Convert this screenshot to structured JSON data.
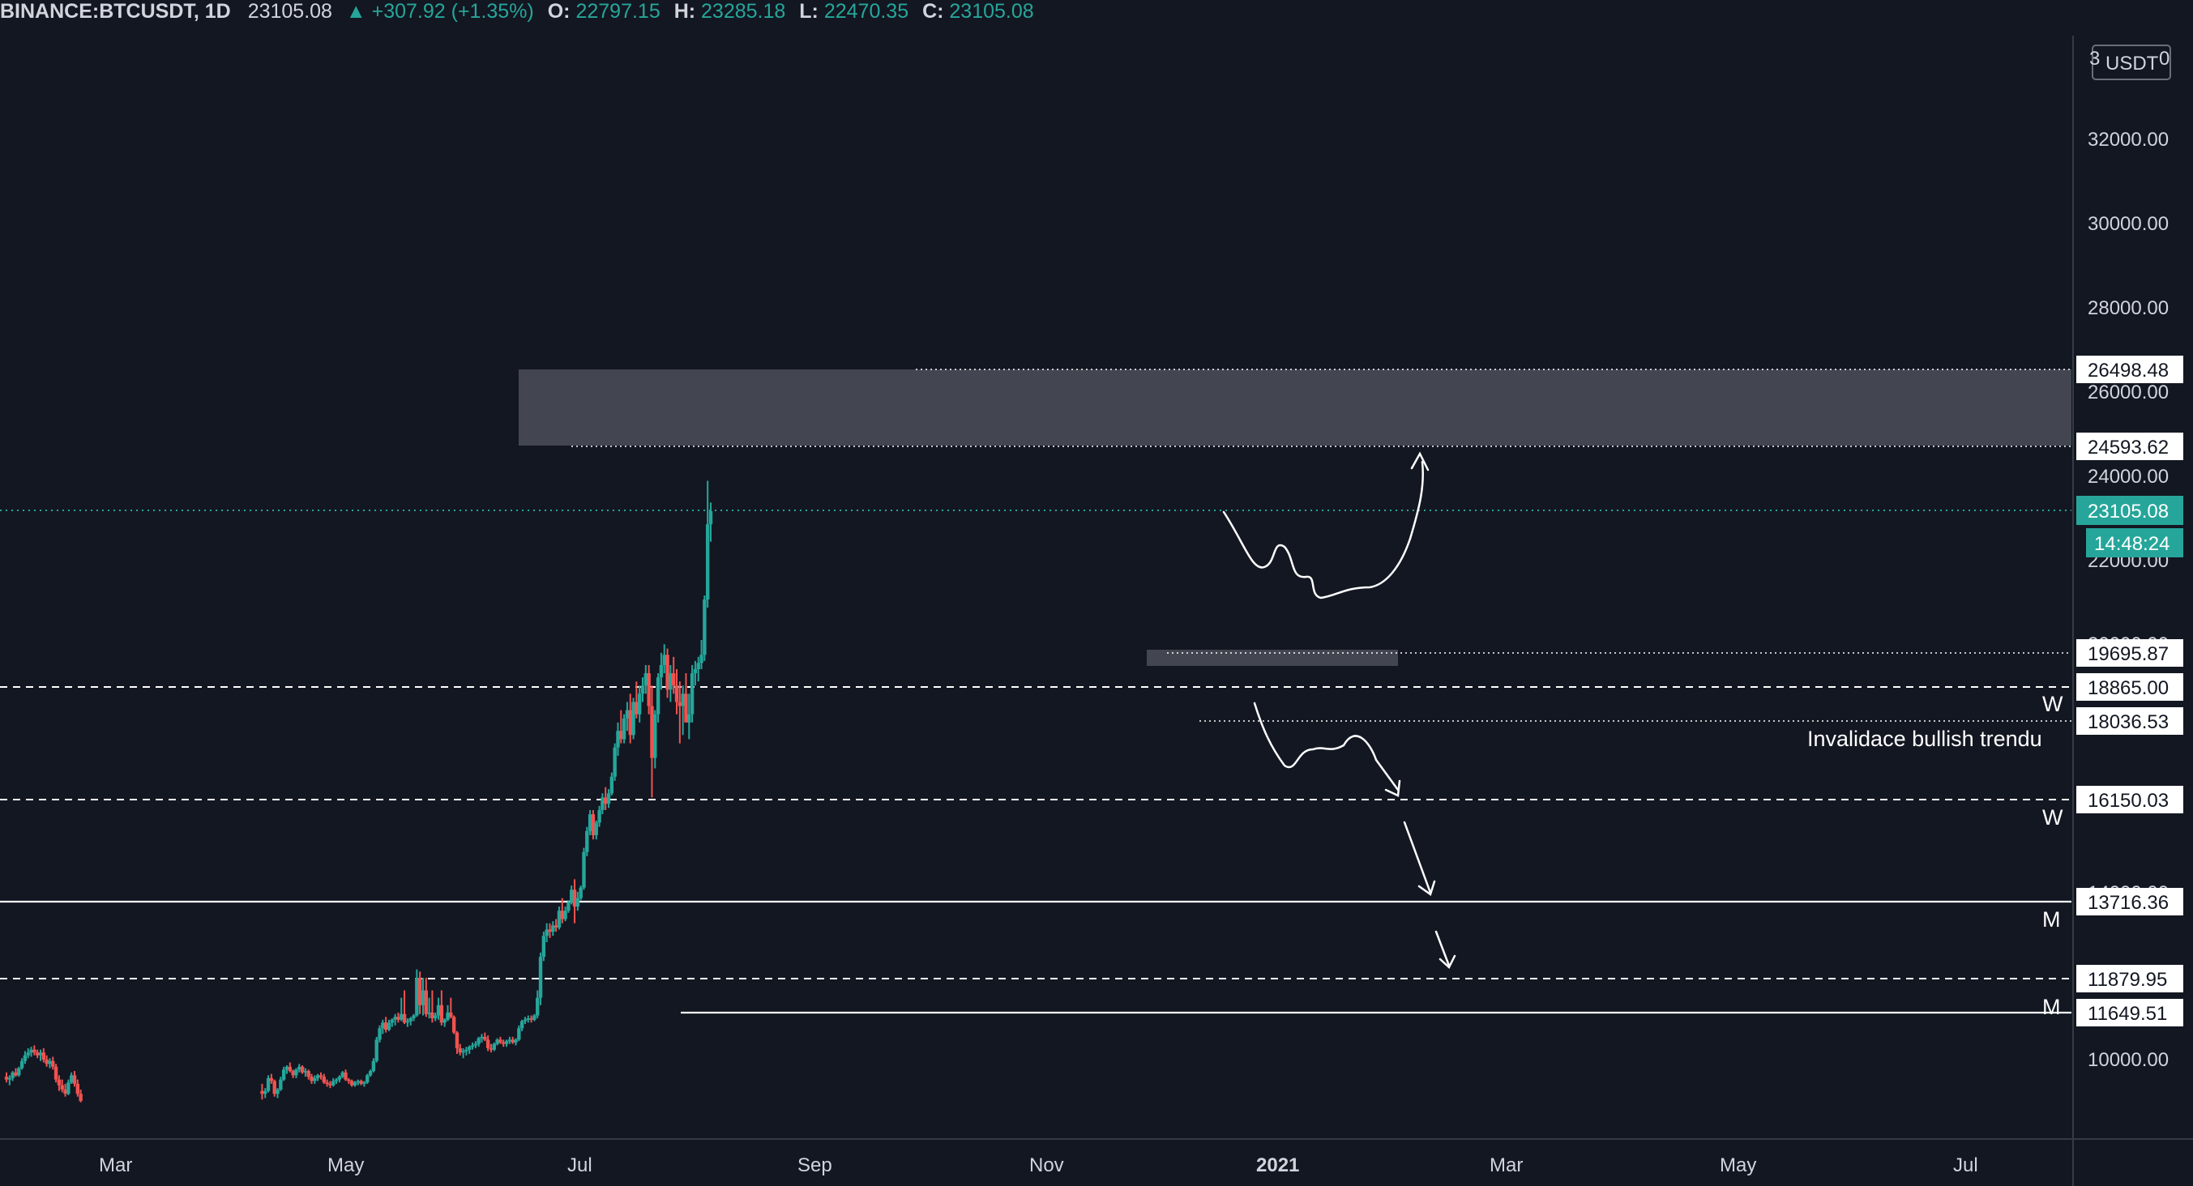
{
  "header": {
    "symbol": "BINANCE:BTCUSDT, 1D",
    "last": "23105.08",
    "change": "▲ +307.92 (+1.35%)",
    "o_label": "O:",
    "o_value": "22797.15",
    "h_label": "H:",
    "h_value": "23285.18",
    "l_label": "L:",
    "l_value": "22470.35",
    "c_label": "C:",
    "c_value": "23105.08"
  },
  "currency": "USDT",
  "colors": {
    "background": "#131722",
    "up": "#26a69a",
    "down": "#ef5350",
    "zone": "#434651",
    "text": "#d1d4dc",
    "line": "#ffffff"
  },
  "chart_data": {
    "type": "candlestick",
    "symbol": "BINANCE:BTCUSDT",
    "interval": "1D",
    "x_axis": {
      "ticks": [
        "Mar",
        "May",
        "Jul",
        "Sep",
        "Nov",
        "2021",
        "Mar",
        "May",
        "Jul"
      ]
    },
    "y_axis": {
      "ticks": [
        "32000.00",
        "30000.00",
        "28000.00",
        "26000.00",
        "24000.00",
        "22000.00",
        "20000.00",
        "14000.00",
        "10000.00"
      ],
      "range": [
        8500,
        34000
      ]
    },
    "price_levels": [
      {
        "price": 26498.48,
        "label": "26498.48",
        "style": "dotted"
      },
      {
        "price": 24593.62,
        "label": "24593.62",
        "style": "dotted"
      },
      {
        "price": 19695.87,
        "label": "19695.87",
        "style": "dotted"
      },
      {
        "price": 18865.0,
        "label": "18865.00",
        "style": "dashed",
        "tag": "W"
      },
      {
        "price": 18036.53,
        "label": "18036.53",
        "style": "dotted"
      },
      {
        "price": 16150.03,
        "label": "16150.03",
        "style": "dashed",
        "tag": "W"
      },
      {
        "price": 13716.36,
        "label": "13716.36",
        "style": "solid",
        "tag": "M"
      },
      {
        "price": 11879.95,
        "label": "11879.95",
        "style": "dashed"
      },
      {
        "price": 11649.51,
        "label": "11649.51",
        "style": "solid",
        "tag": "M"
      }
    ],
    "last_price": {
      "value": 23105.08,
      "label": "23105.08",
      "countdown": "14:48:24"
    },
    "annotations": [
      {
        "text": "Invalidace bullish trendu"
      }
    ],
    "candles": [
      [
        9400,
        9550,
        9200,
        9300
      ],
      [
        9300,
        9450,
        9100,
        9350
      ],
      [
        9350,
        9600,
        9250,
        9550
      ],
      [
        9550,
        9700,
        9400,
        9450
      ],
      [
        9450,
        9750,
        9400,
        9700
      ],
      [
        9700,
        10050,
        9650,
        9950
      ],
      [
        9950,
        10300,
        9850,
        10150
      ],
      [
        10150,
        10400,
        10050,
        10250
      ],
      [
        10250,
        10450,
        10100,
        10350
      ],
      [
        10350,
        10500,
        10150,
        10250
      ],
      [
        10250,
        10350,
        10050,
        10150
      ],
      [
        10150,
        10350,
        9950,
        10250
      ],
      [
        10250,
        10400,
        9900,
        10000
      ],
      [
        10000,
        10150,
        9750,
        9850
      ],
      [
        9850,
        10050,
        9700,
        9950
      ],
      [
        9950,
        10100,
        9650,
        9750
      ],
      [
        9750,
        9850,
        9200,
        9300
      ],
      [
        9300,
        9450,
        8900,
        9100
      ],
      [
        9100,
        9300,
        8850,
        8950
      ],
      [
        8950,
        9150,
        8700,
        8800
      ],
      [
        8800,
        9300,
        8750,
        9200
      ],
      [
        9200,
        9550,
        9150,
        9450
      ],
      [
        9450,
        9600,
        9050,
        9150
      ],
      [
        9150,
        9300,
        8700,
        8800
      ],
      [
        8800,
        8950,
        8500,
        8550
      ],
      [
        8900,
        9150,
        8600,
        8800
      ],
      [
        8800,
        9000,
        8650,
        8900
      ],
      [
        8900,
        9450,
        8850,
        9350
      ],
      [
        9350,
        9500,
        9150,
        9250
      ],
      [
        9250,
        9300,
        8700,
        8800
      ],
      [
        8800,
        9000,
        8650,
        8950
      ],
      [
        8950,
        9400,
        8900,
        9300
      ],
      [
        9300,
        9750,
        9250,
        9650
      ],
      [
        9650,
        9800,
        9500,
        9750
      ],
      [
        9750,
        9900,
        9550,
        9600
      ],
      [
        9600,
        9650,
        9350,
        9450
      ],
      [
        9450,
        9700,
        9350,
        9650
      ],
      [
        9650,
        9850,
        9550,
        9750
      ],
      [
        9750,
        9800,
        9500,
        9550
      ],
      [
        9550,
        9700,
        9400,
        9600
      ],
      [
        9600,
        9650,
        9300,
        9400
      ],
      [
        9400,
        9500,
        9150,
        9250
      ],
      [
        9250,
        9450,
        9150,
        9350
      ],
      [
        9350,
        9500,
        9250,
        9450
      ],
      [
        9450,
        9550,
        9300,
        9400
      ],
      [
        9400,
        9500,
        9150,
        9200
      ],
      [
        9200,
        9300,
        9050,
        9150
      ],
      [
        9150,
        9250,
        9000,
        9100
      ],
      [
        9100,
        9350,
        9050,
        9250
      ],
      [
        9250,
        9350,
        9150,
        9300
      ],
      [
        9300,
        9450,
        9200,
        9400
      ],
      [
        9400,
        9600,
        9350,
        9550
      ],
      [
        9550,
        9650,
        9250,
        9300
      ],
      [
        9300,
        9350,
        9150,
        9250
      ],
      [
        9250,
        9300,
        9050,
        9100
      ],
      [
        9100,
        9250,
        9050,
        9200
      ],
      [
        9200,
        9300,
        9100,
        9250
      ],
      [
        9250,
        9300,
        9100,
        9150
      ],
      [
        9150,
        9250,
        9050,
        9200
      ],
      [
        9200,
        9500,
        9150,
        9450
      ],
      [
        9450,
        9650,
        9400,
        9600
      ],
      [
        9600,
        10050,
        9550,
        9950
      ],
      [
        9950,
        10800,
        9900,
        10700
      ],
      [
        10700,
        11200,
        10600,
        11100
      ],
      [
        11100,
        11400,
        10900,
        11300
      ],
      [
        11300,
        11500,
        10950,
        11050
      ],
      [
        11050,
        11400,
        11000,
        11300
      ],
      [
        11300,
        11450,
        11150,
        11400
      ],
      [
        11400,
        11600,
        11200,
        11500
      ],
      [
        11500,
        11650,
        11300,
        11400
      ],
      [
        11400,
        11750,
        11350,
        11600
      ],
      [
        11600,
        11800,
        11250,
        11300
      ],
      [
        11300,
        11450,
        11150,
        11350
      ],
      [
        11350,
        11500,
        11200,
        11450
      ],
      [
        11450,
        11600,
        11350,
        11550
      ],
      [
        11550,
        12100,
        11500,
        11900
      ],
      [
        11900,
        12050,
        11600,
        11700
      ],
      [
        11700,
        11900,
        11550,
        11800
      ],
      [
        11800,
        11900,
        11500,
        11600
      ],
      [
        11600,
        11750,
        11450,
        11650
      ],
      [
        11650,
        11800,
        11300,
        11450
      ],
      [
        11450,
        11650,
        11350,
        11550
      ],
      [
        11550,
        11750,
        11400,
        11700
      ],
      [
        11700,
        11800,
        11200,
        11300
      ],
      [
        11300,
        11450,
        11150,
        11400
      ],
      [
        11400,
        11700,
        11350,
        11650
      ],
      [
        11650,
        11750,
        11450,
        11500
      ],
      [
        11500,
        11550,
        10900,
        10950
      ],
      [
        10950,
        11000,
        10200,
        10400
      ],
      [
        10400,
        10550,
        10150,
        10250
      ],
      [
        10250,
        10400,
        10050,
        10300
      ],
      [
        10300,
        10450,
        10150,
        10350
      ],
      [
        10350,
        10500,
        10200,
        10450
      ],
      [
        10450,
        10600,
        10350,
        10500
      ],
      [
        10500,
        10650,
        10400,
        10550
      ],
      [
        10550,
        10800,
        10450,
        10750
      ],
      [
        10750,
        10900,
        10600,
        10800
      ],
      [
        10800,
        10950,
        10650,
        10700
      ],
      [
        10700,
        10850,
        10300,
        10400
      ],
      [
        10400,
        10550,
        10250,
        10350
      ],
      [
        10350,
        10600,
        10300,
        10550
      ],
      [
        10550,
        10750,
        10500,
        10700
      ],
      [
        10700,
        10800,
        10550,
        10600
      ],
      [
        10600,
        10700,
        10450,
        10550
      ],
      [
        10550,
        10700,
        10450,
        10650
      ],
      [
        10650,
        10800,
        10550,
        10700
      ],
      [
        10700,
        10800,
        10550,
        10600
      ],
      [
        10600,
        10750,
        10500,
        10700
      ],
      [
        10700,
        11200,
        10650,
        11100
      ],
      [
        11100,
        11400,
        11000,
        11350
      ],
      [
        11350,
        11500,
        11250,
        11400
      ],
      [
        11400,
        11550,
        11300,
        11450
      ],
      [
        11450,
        11550,
        11300,
        11400
      ],
      [
        11400,
        11600,
        11350,
        11550
      ],
      [
        11550,
        11800,
        11450,
        11750
      ],
      [
        11750,
        12500,
        11700,
        12400
      ],
      [
        12400,
        13000,
        12300,
        12900
      ],
      [
        12900,
        13200,
        12750,
        13050
      ],
      [
        13050,
        13200,
        12850,
        13000
      ],
      [
        13000,
        13250,
        12900,
        13150
      ],
      [
        13150,
        13300,
        13000,
        13100
      ],
      [
        13100,
        13600,
        13050,
        13500
      ],
      [
        13500,
        13800,
        13200,
        13300
      ],
      [
        13300,
        13600,
        13250,
        13500
      ],
      [
        13500,
        13750,
        13450,
        13700
      ],
      [
        13700,
        14100,
        13650,
        14000
      ],
      [
        14000,
        14250,
        13200,
        13600
      ],
      [
        13600,
        13950,
        13500,
        13800
      ],
      [
        13800,
        14100,
        13750,
        14050
      ],
      [
        14050,
        15000,
        14000,
        14900
      ],
      [
        14900,
        15500,
        14800,
        15400
      ],
      [
        15400,
        15900,
        15300,
        15800
      ],
      [
        15800,
        15900,
        15200,
        15300
      ],
      [
        15300,
        15650,
        15200,
        15600
      ],
      [
        15600,
        16000,
        15500,
        15900
      ],
      [
        15900,
        16300,
        15800,
        16200
      ],
      [
        16200,
        16450,
        15900,
        16050
      ],
      [
        16050,
        16400,
        15950,
        16300
      ],
      [
        16300,
        16800,
        16250,
        16700
      ],
      [
        16700,
        17500,
        16600,
        17400
      ],
      [
        17400,
        18000,
        17200,
        17800
      ],
      [
        17800,
        18300,
        17500,
        17600
      ],
      [
        17600,
        18200,
        17500,
        18100
      ],
      [
        18100,
        18500,
        17800,
        18300
      ],
      [
        18300,
        18700,
        17500,
        17700
      ],
      [
        17700,
        18600,
        17600,
        18500
      ],
      [
        18500,
        19000,
        18100,
        18200
      ],
      [
        18200,
        18900,
        18000,
        18700
      ],
      [
        18700,
        19100,
        18500,
        18900
      ],
      [
        18900,
        19400,
        18700,
        19200
      ],
      [
        19200,
        19400,
        18200,
        18400
      ],
      [
        18400,
        18900,
        16200,
        17150
      ],
      [
        17150,
        18300,
        16900,
        18200
      ],
      [
        18200,
        19200,
        18000,
        19100
      ],
      [
        19100,
        19700,
        18800,
        19400
      ],
      [
        19400,
        19900,
        19200,
        19650
      ],
      [
        19650,
        19800,
        18600,
        18800
      ],
      [
        18800,
        19400,
        18500,
        19200
      ],
      [
        19200,
        19600,
        18700,
        18900
      ],
      [
        18900,
        19300,
        18200,
        18500
      ],
      [
        18500,
        19000,
        17500,
        18400
      ],
      [
        18400,
        18900,
        17700,
        18700
      ],
      [
        18700,
        19200,
        18200,
        18000
      ],
      [
        18000,
        18700,
        17600,
        18200
      ],
      [
        18200,
        19400,
        18000,
        19200
      ],
      [
        19200,
        19500,
        18900,
        19300
      ],
      [
        19300,
        19600,
        19000,
        19450
      ],
      [
        19450,
        20000,
        19300,
        19650
      ],
      [
        19650,
        21100,
        19500,
        21000
      ],
      [
        21000,
        23800,
        20800,
        22800
      ],
      [
        22800,
        23300,
        22400,
        23105
      ]
    ],
    "candle_x_range": [
      8,
      877
    ]
  }
}
